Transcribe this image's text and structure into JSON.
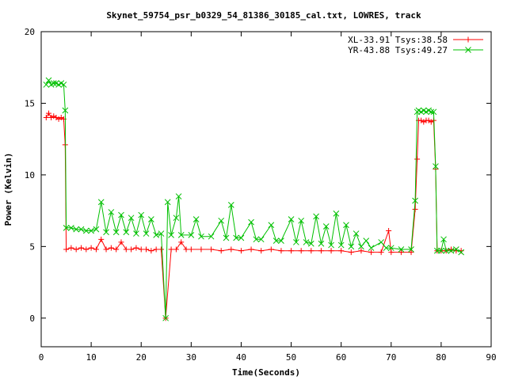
{
  "chart_data": {
    "type": "line",
    "title": "Skynet_59754_psr_b0329_54_81386_30185_cal.txt, LOWRES, track",
    "xlabel": "Time(Seconds)",
    "ylabel": "Power (Kelvin)",
    "xlim": [
      0,
      90
    ],
    "ylim": [
      -2,
      20
    ],
    "xticks": [
      0,
      10,
      20,
      30,
      40,
      50,
      60,
      70,
      80,
      90
    ],
    "yticks": [
      0,
      5,
      10,
      15,
      20
    ],
    "grid": false,
    "legend_position": "top-right",
    "series": [
      {
        "name": "XL-33.91 Tsys:38.58",
        "color": "#ff0000",
        "marker": "plus",
        "values": [
          {
            "x": 1,
            "y": 14.0
          },
          {
            "x": 1.5,
            "y": 14.3
          },
          {
            "x": 2,
            "y": 14.0
          },
          {
            "x": 2.5,
            "y": 14.1
          },
          {
            "x": 3,
            "y": 14.0
          },
          {
            "x": 3.5,
            "y": 13.9
          },
          {
            "x": 4,
            "y": 14.0
          },
          {
            "x": 4.5,
            "y": 13.9
          },
          {
            "x": 4.8,
            "y": 12.1
          },
          {
            "x": 5,
            "y": 4.8
          },
          {
            "x": 6,
            "y": 4.9
          },
          {
            "x": 7,
            "y": 4.8
          },
          {
            "x": 8,
            "y": 4.9
          },
          {
            "x": 9,
            "y": 4.8
          },
          {
            "x": 10,
            "y": 4.9
          },
          {
            "x": 11,
            "y": 4.8
          },
          {
            "x": 12,
            "y": 5.5
          },
          {
            "x": 13,
            "y": 4.8
          },
          {
            "x": 14,
            "y": 4.9
          },
          {
            "x": 15,
            "y": 4.8
          },
          {
            "x": 16,
            "y": 5.3
          },
          {
            "x": 17,
            "y": 4.8
          },
          {
            "x": 18,
            "y": 4.8
          },
          {
            "x": 19,
            "y": 4.9
          },
          {
            "x": 20,
            "y": 4.8
          },
          {
            "x": 21,
            "y": 4.8
          },
          {
            "x": 22,
            "y": 4.7
          },
          {
            "x": 23,
            "y": 4.8
          },
          {
            "x": 24,
            "y": 4.8
          },
          {
            "x": 24.9,
            "y": 0
          },
          {
            "x": 26,
            "y": 4.8
          },
          {
            "x": 27,
            "y": 4.8
          },
          {
            "x": 28,
            "y": 5.3
          },
          {
            "x": 29,
            "y": 4.8
          },
          {
            "x": 30,
            "y": 4.8
          },
          {
            "x": 32,
            "y": 4.8
          },
          {
            "x": 34,
            "y": 4.8
          },
          {
            "x": 36,
            "y": 4.7
          },
          {
            "x": 38,
            "y": 4.8
          },
          {
            "x": 40,
            "y": 4.7
          },
          {
            "x": 42,
            "y": 4.8
          },
          {
            "x": 44,
            "y": 4.7
          },
          {
            "x": 46,
            "y": 4.8
          },
          {
            "x": 48,
            "y": 4.7
          },
          {
            "x": 50,
            "y": 4.7
          },
          {
            "x": 52,
            "y": 4.7
          },
          {
            "x": 54,
            "y": 4.7
          },
          {
            "x": 56,
            "y": 4.7
          },
          {
            "x": 58,
            "y": 4.7
          },
          {
            "x": 60,
            "y": 4.7
          },
          {
            "x": 62,
            "y": 4.6
          },
          {
            "x": 64,
            "y": 4.7
          },
          {
            "x": 66,
            "y": 4.6
          },
          {
            "x": 68,
            "y": 4.6
          },
          {
            "x": 69.5,
            "y": 6.1
          },
          {
            "x": 70,
            "y": 4.6
          },
          {
            "x": 72,
            "y": 4.6
          },
          {
            "x": 74,
            "y": 4.6
          },
          {
            "x": 74.8,
            "y": 7.6
          },
          {
            "x": 75.2,
            "y": 11.1
          },
          {
            "x": 75.5,
            "y": 13.8
          },
          {
            "x": 76,
            "y": 13.8
          },
          {
            "x": 76.5,
            "y": 13.7
          },
          {
            "x": 77,
            "y": 13.8
          },
          {
            "x": 77.5,
            "y": 13.8
          },
          {
            "x": 78,
            "y": 13.7
          },
          {
            "x": 78.5,
            "y": 13.8
          },
          {
            "x": 78.9,
            "y": 10.4
          },
          {
            "x": 79.2,
            "y": 4.7
          },
          {
            "x": 80,
            "y": 4.7
          },
          {
            "x": 81,
            "y": 4.7
          },
          {
            "x": 82,
            "y": 4.8
          },
          {
            "x": 83,
            "y": 4.7
          },
          {
            "x": 84,
            "y": 4.7
          }
        ]
      },
      {
        "name": "YR-43.88 Tsys:49.27",
        "color": "#00c000",
        "marker": "cross",
        "values": [
          {
            "x": 1,
            "y": 16.3
          },
          {
            "x": 1.5,
            "y": 16.6
          },
          {
            "x": 2,
            "y": 16.3
          },
          {
            "x": 2.5,
            "y": 16.4
          },
          {
            "x": 3,
            "y": 16.4
          },
          {
            "x": 3.5,
            "y": 16.3
          },
          {
            "x": 4,
            "y": 16.4
          },
          {
            "x": 4.5,
            "y": 16.3
          },
          {
            "x": 4.8,
            "y": 14.5
          },
          {
            "x": 5,
            "y": 6.3
          },
          {
            "x": 6,
            "y": 6.3
          },
          {
            "x": 7,
            "y": 6.2
          },
          {
            "x": 8,
            "y": 6.2
          },
          {
            "x": 9,
            "y": 6.1
          },
          {
            "x": 10,
            "y": 6.1
          },
          {
            "x": 11,
            "y": 6.2
          },
          {
            "x": 12,
            "y": 8.1
          },
          {
            "x": 13,
            "y": 6.0
          },
          {
            "x": 14,
            "y": 7.4
          },
          {
            "x": 15,
            "y": 6.0
          },
          {
            "x": 16,
            "y": 7.2
          },
          {
            "x": 17,
            "y": 6.0
          },
          {
            "x": 18,
            "y": 7.0
          },
          {
            "x": 19,
            "y": 5.9
          },
          {
            "x": 20,
            "y": 7.2
          },
          {
            "x": 21,
            "y": 5.9
          },
          {
            "x": 22,
            "y": 6.9
          },
          {
            "x": 23,
            "y": 5.8
          },
          {
            "x": 24,
            "y": 5.9
          },
          {
            "x": 24.9,
            "y": 0
          },
          {
            "x": 25.3,
            "y": 8.1
          },
          {
            "x": 26,
            "y": 5.8
          },
          {
            "x": 27,
            "y": 7.0
          },
          {
            "x": 27.5,
            "y": 8.5
          },
          {
            "x": 28,
            "y": 5.8
          },
          {
            "x": 30,
            "y": 5.8
          },
          {
            "x": 31,
            "y": 6.9
          },
          {
            "x": 32,
            "y": 5.7
          },
          {
            "x": 34,
            "y": 5.7
          },
          {
            "x": 36,
            "y": 6.8
          },
          {
            "x": 37,
            "y": 5.6
          },
          {
            "x": 38,
            "y": 7.9
          },
          {
            "x": 39,
            "y": 5.6
          },
          {
            "x": 40,
            "y": 5.6
          },
          {
            "x": 42,
            "y": 6.7
          },
          {
            "x": 43,
            "y": 5.5
          },
          {
            "x": 44,
            "y": 5.5
          },
          {
            "x": 46,
            "y": 6.5
          },
          {
            "x": 47,
            "y": 5.4
          },
          {
            "x": 48,
            "y": 5.4
          },
          {
            "x": 50,
            "y": 6.9
          },
          {
            "x": 51,
            "y": 5.3
          },
          {
            "x": 52,
            "y": 6.8
          },
          {
            "x": 53,
            "y": 5.3
          },
          {
            "x": 54,
            "y": 5.2
          },
          {
            "x": 55,
            "y": 7.1
          },
          {
            "x": 56,
            "y": 5.2
          },
          {
            "x": 57,
            "y": 6.4
          },
          {
            "x": 58,
            "y": 5.1
          },
          {
            "x": 59,
            "y": 7.3
          },
          {
            "x": 60,
            "y": 5.1
          },
          {
            "x": 61,
            "y": 6.5
          },
          {
            "x": 62,
            "y": 5.0
          },
          {
            "x": 63,
            "y": 5.9
          },
          {
            "x": 64,
            "y": 5.0
          },
          {
            "x": 65,
            "y": 5.4
          },
          {
            "x": 66,
            "y": 4.9
          },
          {
            "x": 68,
            "y": 5.3
          },
          {
            "x": 69,
            "y": 4.9
          },
          {
            "x": 70,
            "y": 4.9
          },
          {
            "x": 72,
            "y": 4.8
          },
          {
            "x": 74,
            "y": 4.8
          },
          {
            "x": 74.8,
            "y": 8.2
          },
          {
            "x": 75.2,
            "y": 14.4
          },
          {
            "x": 75.5,
            "y": 14.5
          },
          {
            "x": 76,
            "y": 14.4
          },
          {
            "x": 76.5,
            "y": 14.5
          },
          {
            "x": 77,
            "y": 14.4
          },
          {
            "x": 77.5,
            "y": 14.5
          },
          {
            "x": 78,
            "y": 14.4
          },
          {
            "x": 78.5,
            "y": 14.4
          },
          {
            "x": 78.9,
            "y": 10.6
          },
          {
            "x": 79.2,
            "y": 4.7
          },
          {
            "x": 80,
            "y": 4.7
          },
          {
            "x": 80.5,
            "y": 5.5
          },
          {
            "x": 81,
            "y": 4.7
          },
          {
            "x": 82,
            "y": 4.7
          },
          {
            "x": 83,
            "y": 4.8
          },
          {
            "x": 84,
            "y": 4.6
          }
        ]
      }
    ]
  }
}
